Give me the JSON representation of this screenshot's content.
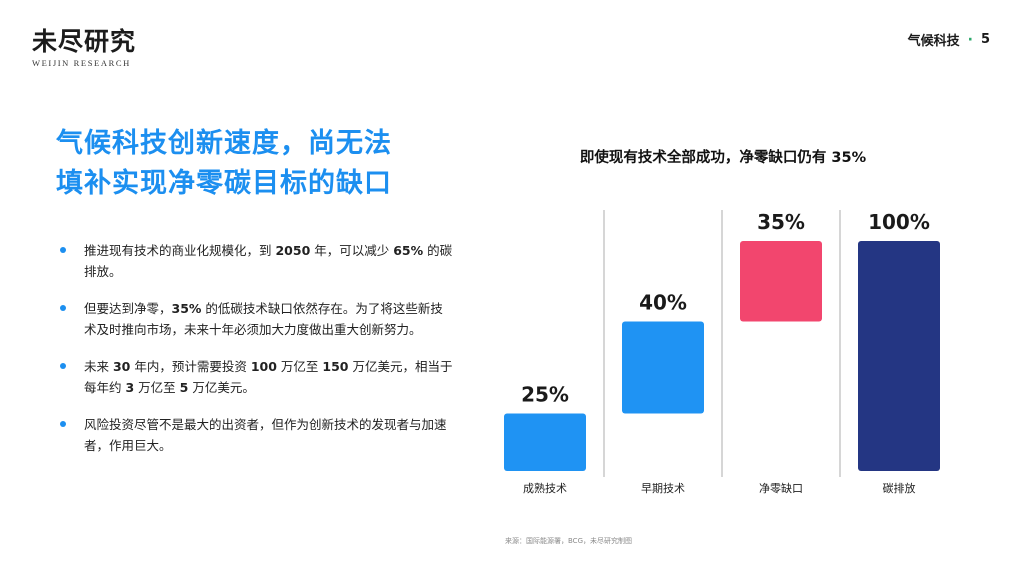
{
  "brand": {
    "name_cn": "未尽研究",
    "name_en": "WEIJIN RESEARCH"
  },
  "header": {
    "section": "气候科技",
    "separator": "·",
    "page_number": "5"
  },
  "headline": {
    "line1": "气候科技创新速度，尚无法",
    "line2": "填补实现净零碳目标的缺口"
  },
  "bullets": [
    {
      "parts": [
        "推进现有技术的商业化规模化，到 ",
        "2050",
        " 年，可以减少 ",
        "65%",
        " 的碳排放。"
      ]
    },
    {
      "parts": [
        "但要达到净零，",
        "35%",
        " 的低碳技术缺口依然存在。为了将这些新技术及时推向市场，未来十年必须加大力度做出重大创新努力。"
      ]
    },
    {
      "parts": [
        "未来 ",
        "30",
        " 年内，预计需要投资 ",
        "100",
        " 万亿至 ",
        "150",
        " 万亿美元，相当于每年约 ",
        "3",
        " 万亿至 ",
        "5",
        " 万亿美元。"
      ]
    },
    {
      "parts": [
        "风险投资尽管不是最大的出资者，但作为创新技术的发现者与加速者，作用巨大。"
      ]
    }
  ],
  "chart_data": {
    "type": "bar",
    "subtype": "waterfall",
    "title": "即使现有技术全部成功，净零缺口仍有 35%",
    "categories": [
      "成熟技术",
      "早期技术",
      "净零缺口",
      "碳排放"
    ],
    "values": [
      25,
      40,
      35,
      100
    ],
    "bases": [
      0,
      25,
      65,
      0
    ],
    "labels": [
      "25%",
      "40%",
      "35%",
      "100%"
    ],
    "colors": [
      "#1f93f3",
      "#1f93f3",
      "#f2466e",
      "#243683"
    ],
    "ylim": [
      0,
      100
    ],
    "grid": false,
    "separators": true
  },
  "source": {
    "text": "来源：国际能源署，BCG，未尽研究制图"
  },
  "colors": {
    "accent": "#1c8ff0",
    "dot": "#2ba86b"
  }
}
